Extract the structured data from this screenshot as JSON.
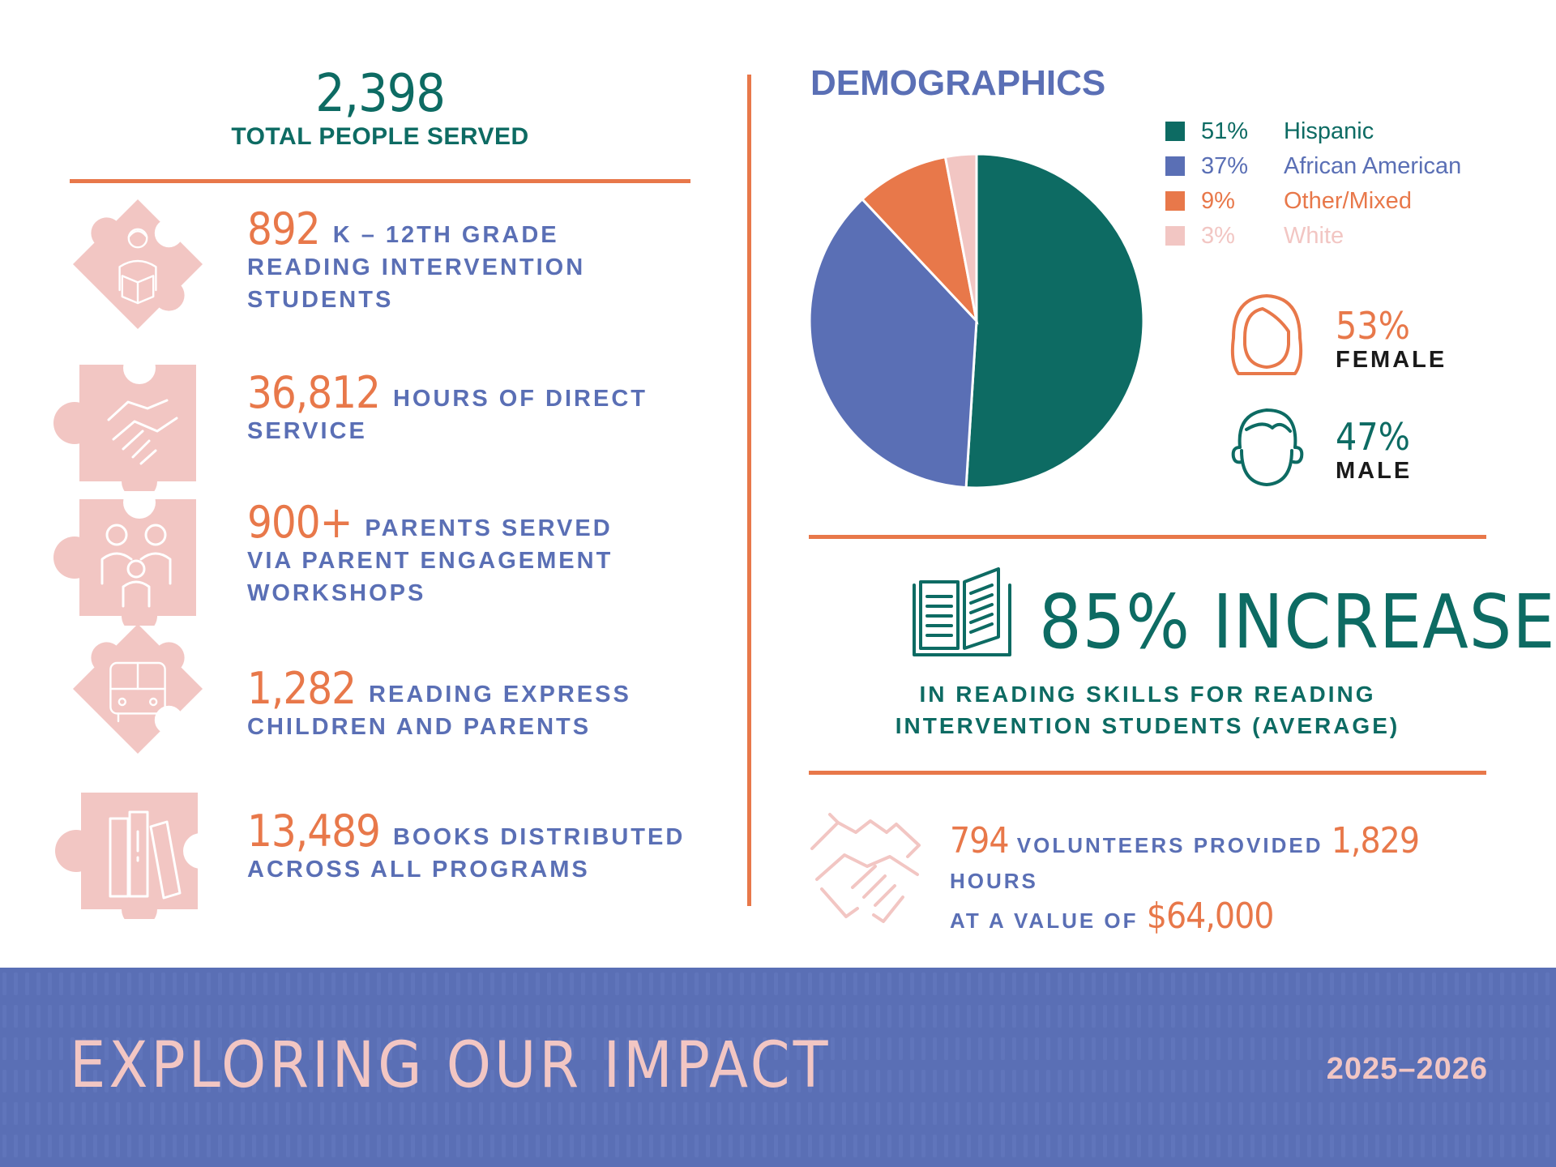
{
  "total": {
    "number": "2,398",
    "label": "TOTAL PEOPLE SERVED"
  },
  "stats": [
    {
      "number": "892",
      "line1": "K – 12TH GRADE",
      "line2": "READING INTERVENTION",
      "line3": "STUDENTS",
      "icon": "student-reading-icon"
    },
    {
      "number": "36,812",
      "line1": "HOURS OF DIRECT",
      "line2": "SERVICE",
      "icon": "handshake-icon"
    },
    {
      "number": "900+",
      "line1": "PARENTS SERVED",
      "line2": "VIA PARENT ENGAGEMENT",
      "line3": "WORKSHOPS",
      "icon": "family-icon"
    },
    {
      "number": "1,282",
      "line1": "READING EXPRESS",
      "line2": "CHILDREN AND PARENTS",
      "icon": "bus-icon"
    },
    {
      "number": "13,489",
      "line1": "BOOKS DISTRIBUTED",
      "line2": "ACROSS ALL PROGRAMS",
      "icon": "books-icon"
    }
  ],
  "demographics": {
    "title": "DEMOGRAPHICS",
    "female": {
      "pct": "53%",
      "label": "FEMALE"
    },
    "male": {
      "pct": "47%",
      "label": "MALE"
    }
  },
  "chart_data": {
    "type": "pie",
    "title": "DEMOGRAPHICS",
    "slices": [
      {
        "label": "Hispanic",
        "pct_label": "51%",
        "value": 51,
        "color": "#0d6b63"
      },
      {
        "label": "African American",
        "pct_label": "37%",
        "value": 37,
        "color": "#5a6fb5"
      },
      {
        "label": "Other/Mixed",
        "pct_label": "9%",
        "value": 9,
        "color": "#e8784a"
      },
      {
        "label": "White",
        "pct_label": "3%",
        "value": 3,
        "color": "#f2c6c3"
      }
    ],
    "legend_position": "top-right"
  },
  "increase": {
    "headline": "85% INCREASE",
    "line1": "IN READING SKILLS FOR READING",
    "line2": "INTERVENTION STUDENTS (AVERAGE)"
  },
  "volunteers": {
    "count": "794",
    "text1": "VOLUNTEERS PROVIDED",
    "hours": "1,829",
    "text2": "HOURS",
    "text3": "AT A VALUE OF",
    "value": "$64,000"
  },
  "footer": {
    "title": "EXPLORING OUR IMPACT",
    "year": "2025–2026"
  },
  "colors": {
    "teal": "#0d6b63",
    "blue": "#5a6fb5",
    "orange": "#e8784a",
    "pink": "#f2c6c3"
  }
}
